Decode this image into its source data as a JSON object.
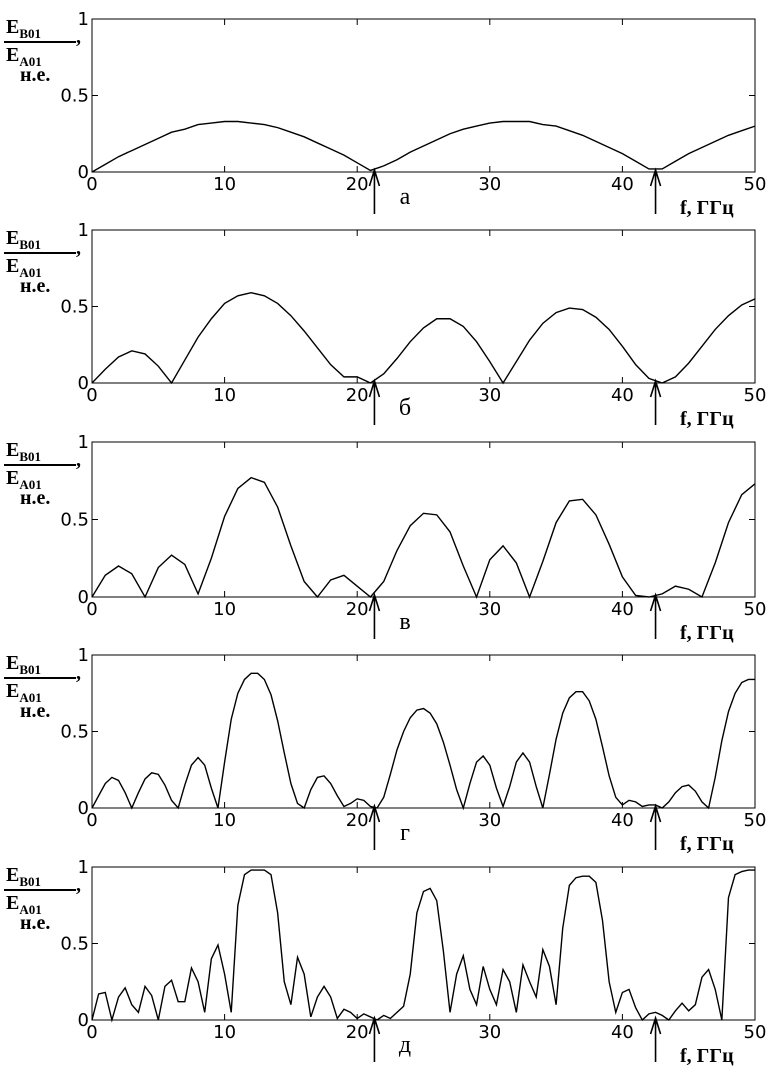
{
  "chart_data": [
    {
      "type": "line",
      "panel_label": "а",
      "ylabel": {
        "num": "E",
        "num_sub": "B01",
        "den": "E",
        "den_sub": "A01",
        "sep": ",",
        "unit": "н.е."
      },
      "xlabel": "f, ГГц",
      "color": "#000000",
      "x": [
        0,
        1,
        2,
        3,
        4,
        5,
        6,
        7,
        8,
        9,
        10,
        11,
        12,
        13,
        14,
        15,
        16,
        17,
        18,
        19,
        20,
        21,
        22,
        23,
        24,
        25,
        26,
        27,
        28,
        29,
        30,
        31,
        32,
        33,
        34,
        35,
        36,
        37,
        38,
        39,
        40,
        41,
        42,
        43,
        44,
        45,
        46,
        47,
        48,
        49,
        50
      ],
      "values": [
        0,
        0.05,
        0.1,
        0.14,
        0.18,
        0.22,
        0.26,
        0.28,
        0.31,
        0.32,
        0.33,
        0.33,
        0.32,
        0.31,
        0.29,
        0.26,
        0.23,
        0.19,
        0.15,
        0.11,
        0.06,
        0.01,
        0.04,
        0.08,
        0.13,
        0.17,
        0.21,
        0.25,
        0.28,
        0.3,
        0.32,
        0.33,
        0.33,
        0.33,
        0.31,
        0.3,
        0.27,
        0.24,
        0.2,
        0.16,
        0.12,
        0.07,
        0.02,
        0.02,
        0.07,
        0.12,
        0.16,
        0.2,
        0.24,
        0.27,
        0.3
      ],
      "xlim": [
        0,
        50
      ],
      "ylim": [
        0,
        1
      ],
      "xticks": [
        0,
        10,
        20,
        30,
        40,
        50
      ],
      "yticks": [
        0,
        0.5,
        1
      ],
      "arrows": [
        21.3,
        42.5
      ]
    },
    {
      "type": "line",
      "panel_label": "б",
      "ylabel": {
        "num": "E",
        "num_sub": "B01",
        "den": "E",
        "den_sub": "A01",
        "sep": ",",
        "unit": "н.е."
      },
      "xlabel": "f, ГГц",
      "color": "#000000",
      "x": [
        0,
        1,
        2,
        3,
        4,
        5,
        6,
        7,
        8,
        9,
        10,
        11,
        12,
        13,
        14,
        15,
        16,
        17,
        18,
        19,
        20,
        21,
        22,
        23,
        24,
        25,
        26,
        27,
        28,
        29,
        30,
        31,
        32,
        33,
        34,
        35,
        36,
        37,
        38,
        39,
        40,
        41,
        42,
        43,
        44,
        45,
        46,
        47,
        48,
        49,
        50
      ],
      "values": [
        0,
        0.09,
        0.17,
        0.21,
        0.19,
        0.11,
        0,
        0.15,
        0.3,
        0.42,
        0.52,
        0.57,
        0.59,
        0.57,
        0.52,
        0.44,
        0.34,
        0.23,
        0.12,
        0.04,
        0.04,
        0,
        0.06,
        0.16,
        0.27,
        0.36,
        0.42,
        0.42,
        0.37,
        0.27,
        0.14,
        0,
        0.14,
        0.28,
        0.39,
        0.46,
        0.49,
        0.48,
        0.43,
        0.35,
        0.24,
        0.12,
        0.03,
        0,
        0.04,
        0.13,
        0.24,
        0.35,
        0.44,
        0.51,
        0.55
      ],
      "xlim": [
        0,
        50
      ],
      "ylim": [
        0,
        1
      ],
      "xticks": [
        0,
        10,
        20,
        30,
        40,
        50
      ],
      "yticks": [
        0,
        0.5,
        1
      ],
      "arrows": [
        21.3,
        42.5
      ]
    },
    {
      "type": "line",
      "panel_label": "в",
      "ylabel": {
        "num": "E",
        "num_sub": "B01",
        "den": "E",
        "den_sub": "A01",
        "sep": ",",
        "unit": "н.е."
      },
      "xlabel": "f, ГГц",
      "color": "#000000",
      "x": [
        0,
        1,
        2,
        3,
        4,
        5,
        6,
        7,
        8,
        9,
        10,
        11,
        12,
        13,
        14,
        15,
        16,
        17,
        18,
        19,
        20,
        21,
        22,
        23,
        24,
        25,
        26,
        27,
        28,
        29,
        30,
        31,
        32,
        33,
        34,
        35,
        36,
        37,
        38,
        39,
        40,
        41,
        42,
        43,
        44,
        45,
        46,
        47,
        48,
        49,
        50
      ],
      "values": [
        0,
        0.14,
        0.2,
        0.15,
        0,
        0.19,
        0.27,
        0.21,
        0.02,
        0.25,
        0.52,
        0.7,
        0.77,
        0.74,
        0.58,
        0.33,
        0.1,
        0,
        0.11,
        0.14,
        0.07,
        0,
        0.1,
        0.3,
        0.46,
        0.54,
        0.53,
        0.42,
        0.2,
        0,
        0.24,
        0.33,
        0.22,
        0,
        0.23,
        0.48,
        0.62,
        0.63,
        0.53,
        0.34,
        0.13,
        0.01,
        0,
        0.02,
        0.07,
        0.05,
        0,
        0.22,
        0.48,
        0.66,
        0.73
      ],
      "xlim": [
        0,
        50
      ],
      "ylim": [
        0,
        1
      ],
      "xticks": [
        0,
        10,
        20,
        30,
        40,
        50
      ],
      "yticks": [
        0,
        0.5,
        1
      ],
      "arrows": [
        21.3,
        42.5
      ]
    },
    {
      "type": "line",
      "panel_label": "г",
      "ylabel": {
        "num": "E",
        "num_sub": "B01",
        "den": "E",
        "den_sub": "A01",
        "sep": ",",
        "unit": "н.е."
      },
      "xlabel": "f, ГГц",
      "color": "#000000",
      "x": [
        0,
        0.5,
        1,
        1.5,
        2,
        2.5,
        3,
        3.5,
        4,
        4.5,
        5,
        5.5,
        6,
        6.5,
        7,
        7.5,
        8,
        8.5,
        9,
        9.5,
        10,
        10.5,
        11,
        11.5,
        12,
        12.5,
        13,
        13.5,
        14,
        14.5,
        15,
        15.5,
        16,
        16.5,
        17,
        17.5,
        18,
        18.5,
        19,
        19.5,
        20,
        20.5,
        21,
        21.5,
        22,
        22.5,
        23,
        23.5,
        24,
        24.5,
        25,
        25.5,
        26,
        26.5,
        27,
        27.5,
        28,
        28.5,
        29,
        29.5,
        30,
        30.5,
        31,
        31.5,
        32,
        32.5,
        33,
        33.5,
        34,
        34.5,
        35,
        35.5,
        36,
        36.5,
        37,
        37.5,
        38,
        38.5,
        39,
        39.5,
        40,
        40.5,
        41,
        41.5,
        42,
        42.5,
        43,
        43.5,
        44,
        44.5,
        45,
        45.5,
        46,
        46.5,
        47,
        47.5,
        48,
        48.5,
        49,
        49.5,
        50
      ],
      "values": [
        0,
        0.08,
        0.16,
        0.2,
        0.18,
        0.1,
        0,
        0.1,
        0.19,
        0.23,
        0.22,
        0.15,
        0.05,
        0,
        0.15,
        0.28,
        0.33,
        0.28,
        0.13,
        0,
        0.3,
        0.58,
        0.75,
        0.84,
        0.88,
        0.88,
        0.84,
        0.74,
        0.57,
        0.36,
        0.16,
        0.03,
        0,
        0.12,
        0.2,
        0.21,
        0.16,
        0.08,
        0.01,
        0.03,
        0.06,
        0.05,
        0.01,
        0,
        0.07,
        0.22,
        0.38,
        0.5,
        0.59,
        0.64,
        0.65,
        0.62,
        0.55,
        0.43,
        0.28,
        0.12,
        0,
        0.16,
        0.3,
        0.34,
        0.28,
        0.13,
        0.01,
        0.14,
        0.3,
        0.36,
        0.3,
        0.14,
        0,
        0.22,
        0.45,
        0.62,
        0.72,
        0.76,
        0.76,
        0.7,
        0.58,
        0.4,
        0.21,
        0.07,
        0.02,
        0.05,
        0.04,
        0.01,
        0.02,
        0.02,
        0,
        0.04,
        0.1,
        0.14,
        0.15,
        0.11,
        0.04,
        0,
        0.2,
        0.44,
        0.63,
        0.75,
        0.82,
        0.84,
        0.84
      ],
      "xlim": [
        0,
        50
      ],
      "ylim": [
        0,
        1
      ],
      "xticks": [
        0,
        10,
        20,
        30,
        40,
        50
      ],
      "yticks": [
        0,
        0.5,
        1
      ],
      "arrows": [
        21.3,
        42.5
      ]
    },
    {
      "type": "line",
      "panel_label": "д",
      "ylabel": {
        "num": "E",
        "num_sub": "B01",
        "den": "E",
        "den_sub": "A01",
        "sep": ",",
        "unit": "н.е."
      },
      "xlabel": "f, ГГц",
      "color": "#000000",
      "x": [
        0,
        0.5,
        1,
        1.5,
        2,
        2.5,
        3,
        3.5,
        4,
        4.5,
        5,
        5.5,
        6,
        6.5,
        7,
        7.5,
        8,
        8.5,
        9,
        9.5,
        10,
        10.5,
        11,
        11.5,
        12,
        12.5,
        13,
        13.5,
        14,
        14.5,
        15,
        15.5,
        16,
        16.5,
        17,
        17.5,
        18,
        18.5,
        19,
        19.5,
        20,
        20.5,
        21,
        21.5,
        22,
        22.5,
        23,
        23.5,
        24,
        24.5,
        25,
        25.5,
        26,
        26.5,
        27,
        27.5,
        28,
        28.5,
        29,
        29.5,
        30,
        30.5,
        31,
        31.5,
        32,
        32.5,
        33,
        33.5,
        34,
        34.5,
        35,
        35.5,
        36,
        36.5,
        37,
        37.5,
        38,
        38.5,
        39,
        39.5,
        40,
        40.5,
        41,
        41.5,
        42,
        42.5,
        43,
        43.5,
        44,
        44.5,
        45,
        45.5,
        46,
        46.5,
        47,
        47.5,
        48,
        48.5,
        49,
        49.5,
        50
      ],
      "values": [
        0,
        0.17,
        0.18,
        0,
        0.15,
        0.21,
        0.1,
        0.05,
        0.22,
        0.16,
        0,
        0.22,
        0.26,
        0.12,
        0.12,
        0.34,
        0.25,
        0.05,
        0.4,
        0.49,
        0.3,
        0.05,
        0.75,
        0.95,
        0.98,
        0.98,
        0.98,
        0.95,
        0.7,
        0.25,
        0.1,
        0.41,
        0.3,
        0.02,
        0.15,
        0.22,
        0.15,
        0.01,
        0.07,
        0.05,
        0.01,
        0.04,
        0.02,
        0,
        0.03,
        0.01,
        0.05,
        0.09,
        0.3,
        0.7,
        0.84,
        0.86,
        0.78,
        0.45,
        0.05,
        0.3,
        0.42,
        0.2,
        0.1,
        0.35,
        0.2,
        0.1,
        0.33,
        0.25,
        0.05,
        0.36,
        0.25,
        0.15,
        0.46,
        0.35,
        0.1,
        0.6,
        0.88,
        0.93,
        0.94,
        0.94,
        0.9,
        0.65,
        0.25,
        0.05,
        0.18,
        0.2,
        0.08,
        0,
        0.04,
        0.05,
        0.03,
        0,
        0.06,
        0.11,
        0.06,
        0.1,
        0.28,
        0.33,
        0.2,
        0,
        0.8,
        0.95,
        0.97,
        0.98,
        0.98
      ],
      "xlim": [
        0,
        50
      ],
      "ylim": [
        0,
        1
      ],
      "xticks": [
        0,
        10,
        20,
        30,
        40,
        50
      ],
      "yticks": [
        0,
        0.5,
        1
      ],
      "arrows": [
        21.3,
        42.5
      ]
    }
  ]
}
